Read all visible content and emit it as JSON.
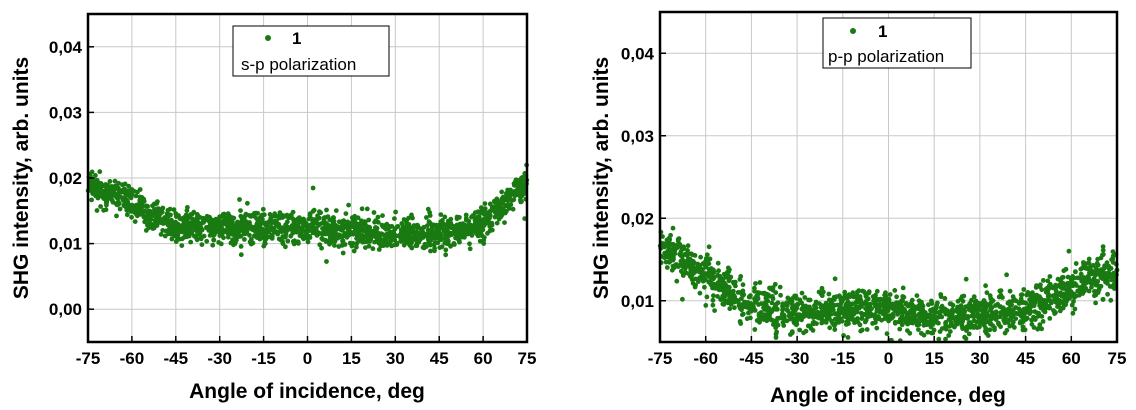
{
  "chart_data": [
    {
      "type": "scatter",
      "xlabel": "Angle of incidence, deg",
      "ylabel": "SHG intensity, arb. units",
      "xlim": [
        -75,
        75
      ],
      "ylim": [
        -0.005,
        0.045
      ],
      "xticks": [
        -75,
        -60,
        -45,
        -30,
        -15,
        0,
        15,
        30,
        45,
        60,
        75
      ],
      "yticks": [
        0.0,
        0.01,
        0.02,
        0.03,
        0.04
      ],
      "ytick_labels": [
        "0,00",
        "0,01",
        "0,02",
        "0,03",
        "0,04"
      ],
      "grid": true,
      "legend_position": "top-center",
      "marker_color": "#1a7a12",
      "series": [
        {
          "name": "1",
          "annotation": "s-p polarization",
          "trend_x": [
            -75,
            -70,
            -60,
            -50,
            -45,
            -30,
            -15,
            0,
            15,
            30,
            45,
            55,
            60,
            65,
            70,
            75
          ],
          "trend_y": [
            0.019,
            0.018,
            0.0165,
            0.0135,
            0.0125,
            0.0125,
            0.0125,
            0.0125,
            0.012,
            0.0115,
            0.0115,
            0.012,
            0.0135,
            0.0155,
            0.0175,
            0.0195
          ],
          "spread": 0.0022
        }
      ]
    },
    {
      "type": "scatter",
      "xlabel": "Angle of incidence, deg",
      "ylabel": "SHG intensity, arb. units",
      "xlim": [
        -75,
        75
      ],
      "ylim": [
        0.005,
        0.045
      ],
      "xticks": [
        -75,
        -60,
        -45,
        -30,
        -15,
        0,
        15,
        30,
        45,
        60,
        75
      ],
      "yticks": [
        0.01,
        0.02,
        0.03,
        0.04
      ],
      "ytick_labels": [
        "0,01",
        "0,02",
        "0,03",
        "0,04"
      ],
      "grid": true,
      "legend_position": "top-center",
      "marker_color": "#1a7a12",
      "series": [
        {
          "name": "1",
          "annotation": "p-p polarization",
          "trend_x": [
            -75,
            -70,
            -60,
            -50,
            -45,
            -30,
            -15,
            0,
            15,
            30,
            45,
            55,
            60,
            65,
            70,
            75
          ],
          "trend_y": [
            0.0165,
            0.0155,
            0.013,
            0.0105,
            0.0095,
            0.0085,
            0.009,
            0.009,
            0.008,
            0.008,
            0.009,
            0.0105,
            0.0115,
            0.0125,
            0.013,
            0.0135
          ],
          "spread": 0.0022
        }
      ]
    }
  ]
}
